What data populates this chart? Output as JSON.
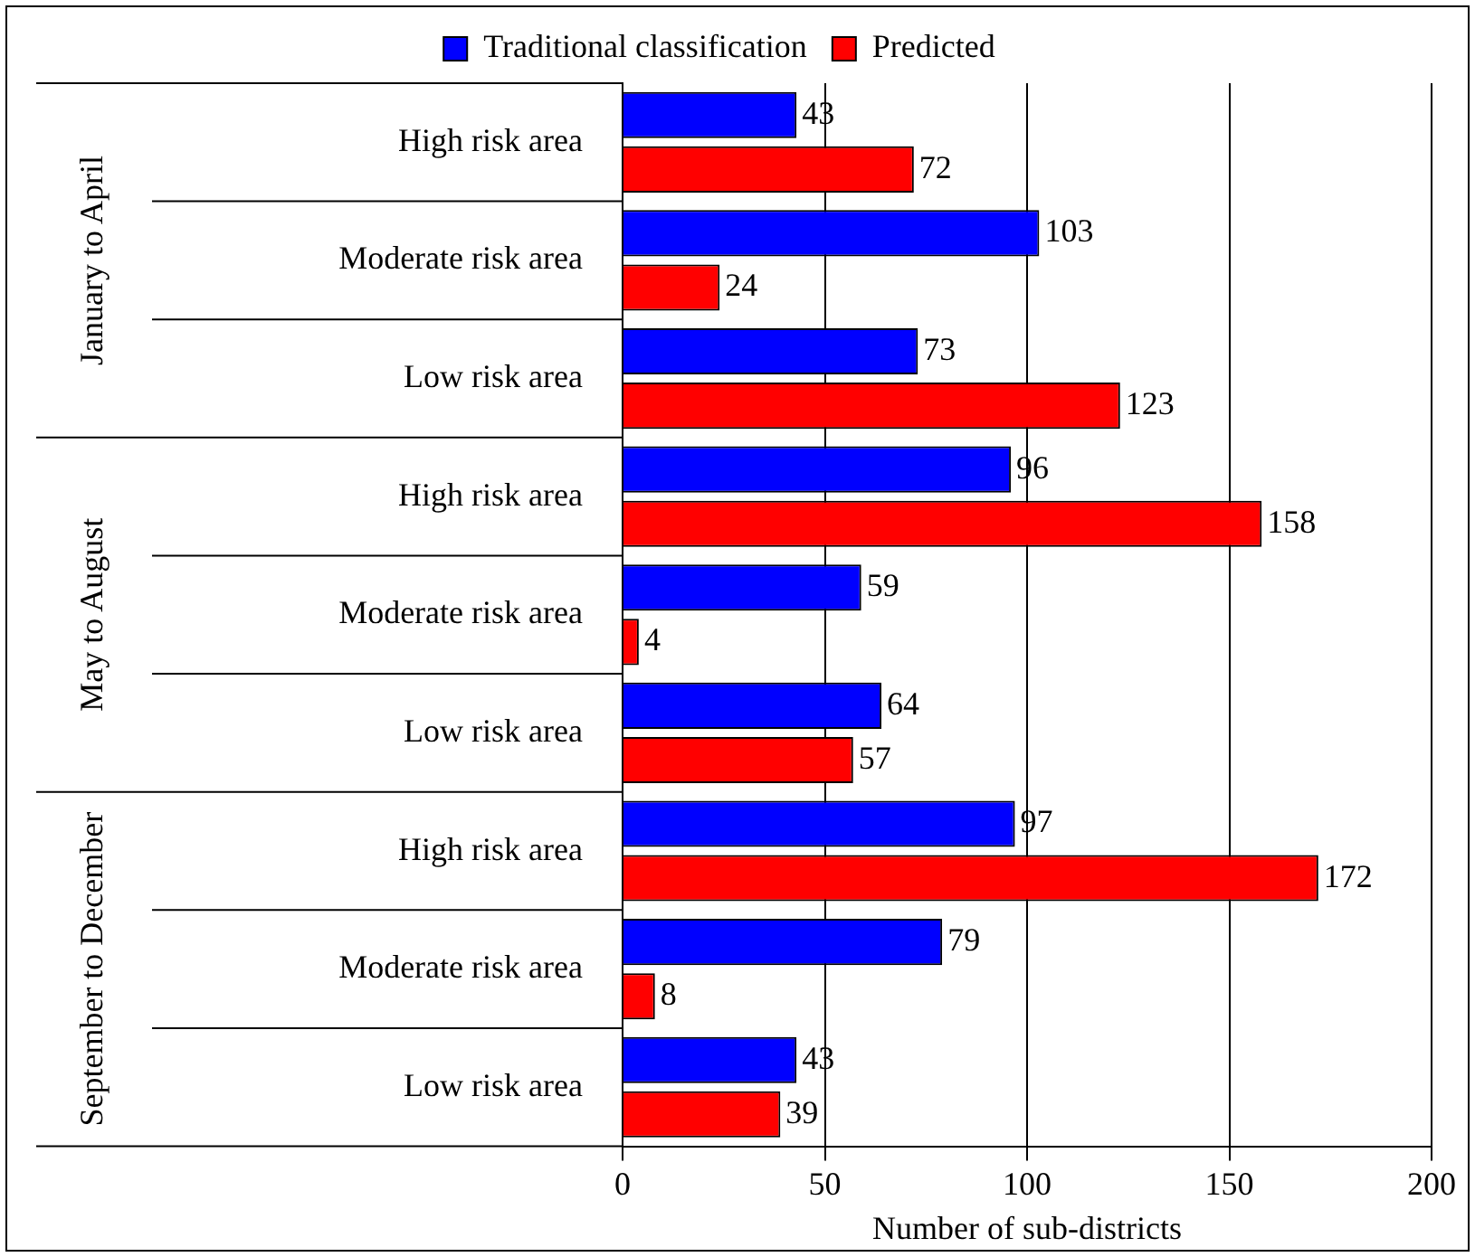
{
  "chart_data": {
    "type": "bar",
    "orientation": "horizontal",
    "xlabel": "Number of sub-districts",
    "categories": [
      "High risk area",
      "Moderate risk area",
      "Low risk area",
      "High risk area",
      "Moderate risk area",
      "Low risk area",
      "High risk area",
      "Moderate risk area",
      "Low risk area"
    ],
    "series": [
      {
        "name": "Traditional classification",
        "color": "#0000ff",
        "values": [
          43,
          103,
          73,
          96,
          59,
          64,
          97,
          79,
          43
        ]
      },
      {
        "name": "Predicted",
        "color": "#ff0000",
        "values": [
          72,
          24,
          123,
          158,
          4,
          57,
          172,
          8,
          39
        ]
      }
    ],
    "annotations": [
      "January to April",
      "May to August",
      "September to December"
    ],
    "xlim": [
      0,
      200
    ],
    "xticks": [
      0,
      50,
      100,
      150,
      200
    ],
    "grid": "x",
    "legend": "top",
    "data_labels": true
  }
}
